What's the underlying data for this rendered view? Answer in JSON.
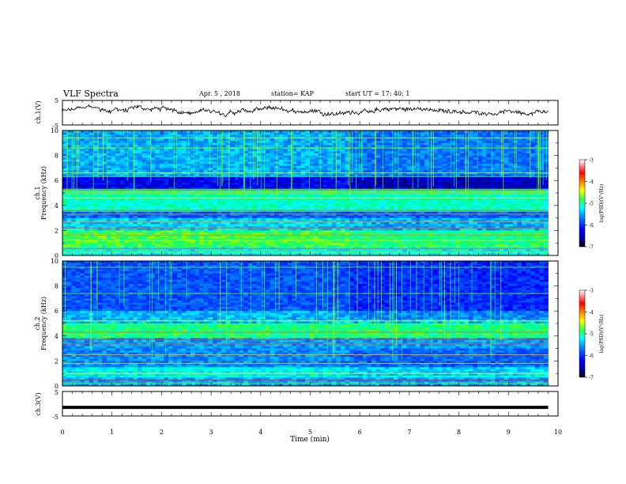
{
  "header": {
    "title": "VLF Spectra",
    "date": "Apr. 5 , 2018",
    "station": "station= KAP",
    "start": "start UT = 17: 40: 1"
  },
  "chart_data": [
    {
      "type": "line",
      "panel": "ch1-waveform",
      "ylabel": "ch.1(V)",
      "ylim": [
        -5,
        5
      ],
      "yticks": [
        "5",
        "-5"
      ],
      "xlim": [
        0,
        10
      ],
      "description_values": "noisy waveform around ~1 V, amplitude ~±2 V"
    },
    {
      "type": "heatmap",
      "panel": "ch1-spectrogram",
      "ylabel": "ch.1 Frequency (kHz)",
      "ylim": [
        0,
        10
      ],
      "yticks": [
        "0",
        "2",
        "4",
        "6",
        "8",
        "10"
      ],
      "xlim": [
        0,
        10
      ],
      "colorbar": {
        "label": "log(PSD)(V²/Hz)",
        "ticks": [
          "-3",
          "-4",
          "-5",
          "-6",
          "-7"
        ],
        "range": [
          -7,
          -3
        ]
      }
    },
    {
      "type": "heatmap",
      "panel": "ch2-spectrogram",
      "ylabel": "ch.2 Frequency (kHz)",
      "ylim": [
        0,
        10
      ],
      "yticks": [
        "0",
        "2",
        "4",
        "6",
        "8",
        "10"
      ],
      "xlim": [
        0,
        10
      ],
      "colorbar": {
        "label": "log(PSD)(V²/Hz)",
        "ticks": [
          "-3",
          "-4",
          "-5",
          "-6",
          "-7"
        ],
        "range": [
          -7,
          -3
        ]
      }
    },
    {
      "type": "line",
      "panel": "ch3-waveform",
      "ylabel": "ch.3(V)",
      "ylim": [
        -5,
        5
      ],
      "yticks": [
        "5",
        "-5"
      ],
      "xlim": [
        0,
        10
      ],
      "level": -1.5
    }
  ],
  "xaxis": {
    "label": "Time (min)",
    "ticks": [
      "0",
      "1",
      "2",
      "3",
      "4",
      "5",
      "6",
      "7",
      "8",
      "9",
      "10"
    ],
    "data_end": 9.8
  },
  "colors": {
    "colormap": [
      "#000080",
      "#0000ff",
      "#0080ff",
      "#00ffff",
      "#00ff80",
      "#80ff00",
      "#ffff00",
      "#ff8000",
      "#ff0000",
      "#ff8080",
      "#ffffff"
    ]
  }
}
